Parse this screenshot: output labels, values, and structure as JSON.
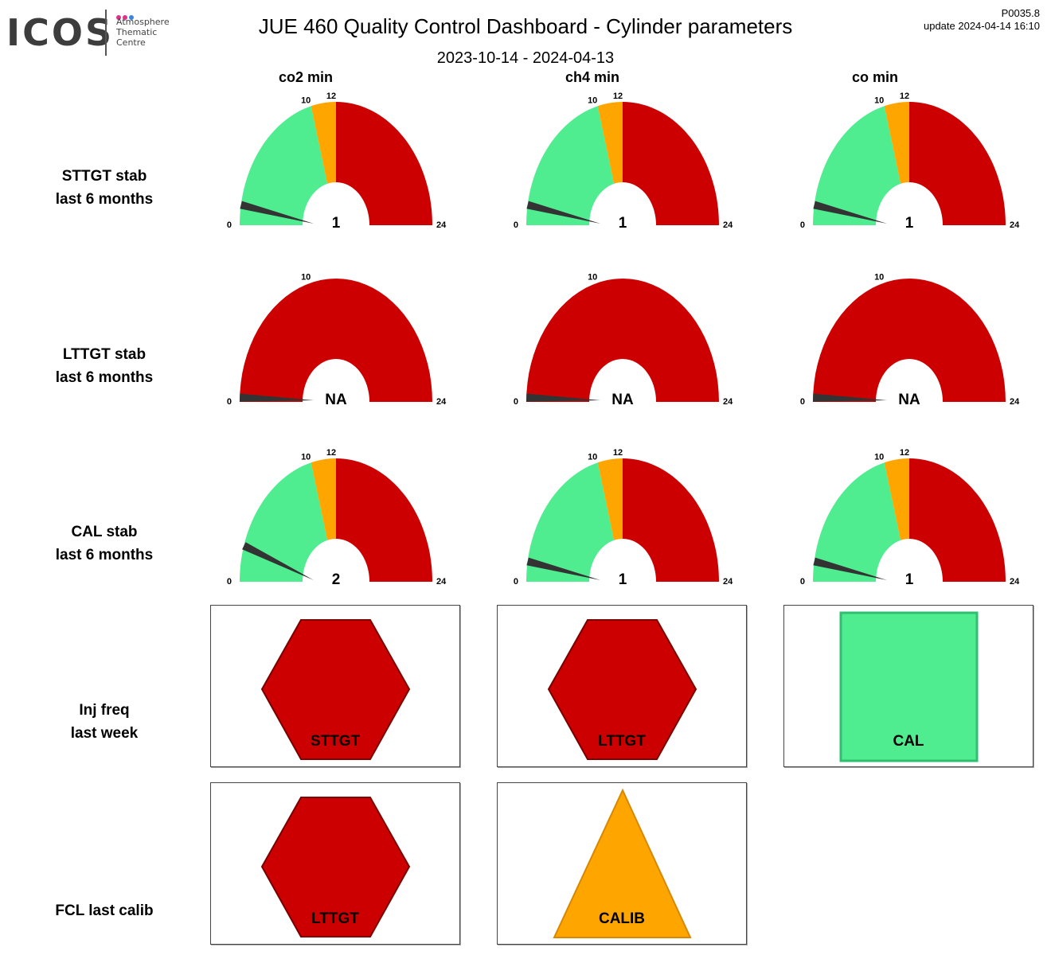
{
  "header": {
    "logo_text": "ICOS",
    "logo_lines": [
      "Atmosphere",
      "Thematic",
      "Centre"
    ],
    "logo_dot_colors": [
      "#e0308c",
      "#e0308c",
      "#3a86d8"
    ],
    "title": "JUE 460 Quality Control Dashboard - Cylinder parameters",
    "date_range": "2023-10-14 - 2024-04-13",
    "version": "P0035.8",
    "update": "update  2024-04-14 16:10"
  },
  "columns": [
    "co2 min",
    "ch4 min",
    "co min"
  ],
  "rows": [
    {
      "label_lines": [
        "STTGT stab",
        "last 6 months"
      ]
    },
    {
      "label_lines": [
        "LTTGT stab",
        "last 6 months"
      ]
    },
    {
      "label_lines": [
        "CAL stab",
        "last 6 months"
      ]
    },
    {
      "label_lines": [
        "Inj freq",
        "last week"
      ]
    },
    {
      "label_lines": [
        "FCL last calib"
      ]
    }
  ],
  "colors": {
    "green": "#4fed90",
    "orange": "#ffa500",
    "red": "#cc0000",
    "needle": "#333333"
  },
  "chart_data": {
    "type": "gauge",
    "min": 0,
    "max": 24,
    "gauges": [
      [
        {
          "value": 1,
          "display": "1",
          "green_to": 10,
          "orange_to": 12,
          "labels": [
            "0",
            "10",
            "12",
            "24"
          ]
        },
        {
          "value": 1,
          "display": "1",
          "green_to": 10,
          "orange_to": 12,
          "labels": [
            "0",
            "10",
            "12",
            "24"
          ]
        },
        {
          "value": 1,
          "display": "1",
          "green_to": 10,
          "orange_to": 12,
          "labels": [
            "0",
            "10",
            "12",
            "24"
          ]
        }
      ],
      [
        {
          "value": 0,
          "display": "NA",
          "green_to": 0,
          "orange_to": 0,
          "labels": [
            "0",
            "10",
            "24"
          ]
        },
        {
          "value": 0,
          "display": "NA",
          "green_to": 0,
          "orange_to": 0,
          "labels": [
            "0",
            "10",
            "24"
          ]
        },
        {
          "value": 0,
          "display": "NA",
          "green_to": 0,
          "orange_to": 0,
          "labels": [
            "0",
            "10",
            "24"
          ]
        }
      ],
      [
        {
          "value": 2,
          "display": "2",
          "green_to": 10,
          "orange_to": 12,
          "labels": [
            "0",
            "10",
            "12",
            "24"
          ]
        },
        {
          "value": 1,
          "display": "1",
          "green_to": 10,
          "orange_to": 12,
          "labels": [
            "0",
            "10",
            "12",
            "24"
          ]
        },
        {
          "value": 1,
          "display": "1",
          "green_to": 10,
          "orange_to": 12,
          "labels": [
            "0",
            "10",
            "12",
            "24"
          ]
        }
      ]
    ],
    "indicators": [
      [
        {
          "shape": "hexagon",
          "color": "red",
          "label": "STTGT"
        },
        {
          "shape": "hexagon",
          "color": "red",
          "label": "LTTGT"
        },
        {
          "shape": "square",
          "color": "green",
          "label": "CAL"
        }
      ],
      [
        {
          "shape": "hexagon",
          "color": "red",
          "label": "LTTGT"
        },
        {
          "shape": "triangle",
          "color": "orange",
          "label": "CALIB"
        }
      ]
    ]
  }
}
